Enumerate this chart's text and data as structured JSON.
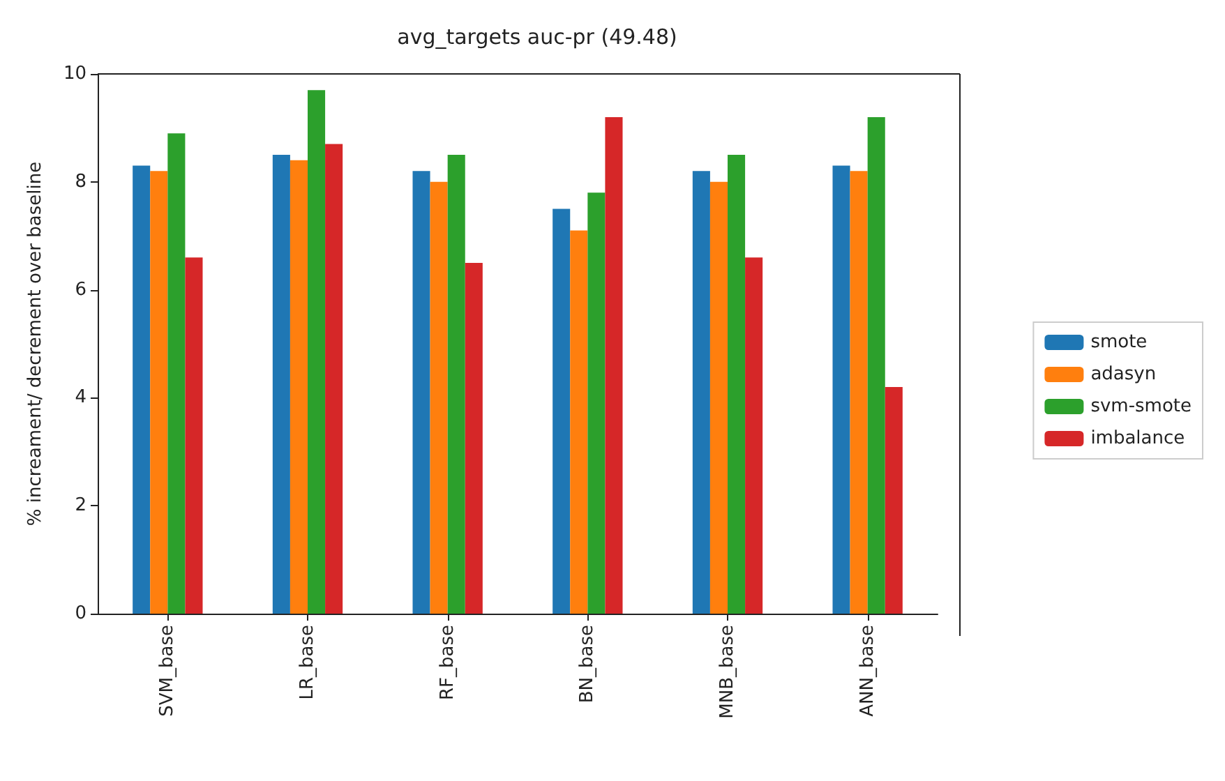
{
  "chart_data": {
    "type": "bar",
    "title": "avg_targets auc-pr (49.48)",
    "ylabel": "% increament/ decrement over baseline",
    "categories": [
      "SVM_base",
      "LR_base",
      "RF_base",
      "BN_base",
      "MNB_base",
      "ANN_base"
    ],
    "series": [
      {
        "name": "smote",
        "color": "#1f77b4",
        "values": [
          8.3,
          8.5,
          8.2,
          7.5,
          8.2,
          8.3
        ]
      },
      {
        "name": "adasyn",
        "color": "#ff7f0e",
        "values": [
          8.2,
          8.4,
          8.0,
          7.1,
          8.0,
          8.2
        ]
      },
      {
        "name": "svm-smote",
        "color": "#2ca02c",
        "values": [
          8.9,
          9.7,
          8.5,
          7.8,
          8.5,
          9.2
        ]
      },
      {
        "name": "imbalance",
        "color": "#d62728",
        "values": [
          6.6,
          8.7,
          6.5,
          9.2,
          6.6,
          4.2
        ]
      }
    ],
    "ylim": [
      0,
      10
    ],
    "yticks": [
      0,
      2,
      4,
      6,
      8,
      10
    ],
    "grid": false,
    "legend": "right"
  }
}
